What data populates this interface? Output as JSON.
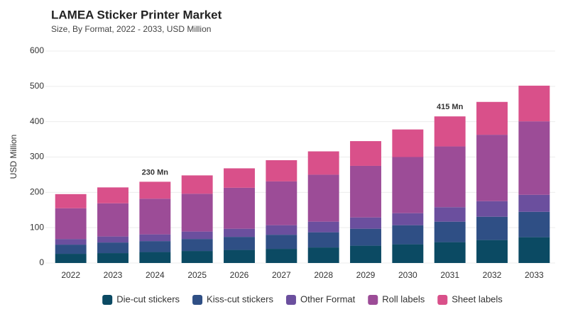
{
  "chart_data": {
    "type": "stacked_bar",
    "title": "LAMEA Sticker Printer Market",
    "subtitle": "Size, By Format, 2022 - 2033, USD Million",
    "y_label": "USD Million",
    "categories": [
      "2022",
      "2023",
      "2024",
      "2025",
      "2026",
      "2027",
      "2028",
      "2029",
      "2030",
      "2031",
      "2032",
      "2033"
    ],
    "series": [
      {
        "name": "Die-cut stickers",
        "color": "#0b4a63",
        "values": [
          26,
          28,
          31,
          34,
          37,
          40,
          44,
          49,
          53,
          59,
          65,
          73
        ]
      },
      {
        "name": "Kiss-cut stickers",
        "color": "#2f4f85",
        "values": [
          26,
          30,
          31,
          34,
          37,
          40,
          43,
          48,
          54,
          58,
          66,
          72
        ]
      },
      {
        "name": "Other Format",
        "color": "#6b4f9e",
        "values": [
          16,
          17,
          19,
          21,
          23,
          27,
          30,
          32,
          34,
          41,
          44,
          48
        ]
      },
      {
        "name": "Roll labels",
        "color": "#9c4c97",
        "values": [
          87,
          94,
          101,
          107,
          116,
          124,
          133,
          146,
          159,
          172,
          188,
          208
        ]
      },
      {
        "name": "Sheet labels",
        "color": "#d9508a",
        "values": [
          40,
          45,
          48,
          52,
          55,
          60,
          66,
          70,
          78,
          85,
          93,
          101
        ]
      }
    ],
    "annotations": [
      {
        "x": "2024",
        "label": "230 Mn"
      },
      {
        "x": "2031",
        "label": "415 Mn"
      }
    ],
    "ylim": [
      0,
      600
    ],
    "yticks": [
      0,
      100,
      200,
      300,
      400,
      500,
      600
    ],
    "grid": true
  }
}
